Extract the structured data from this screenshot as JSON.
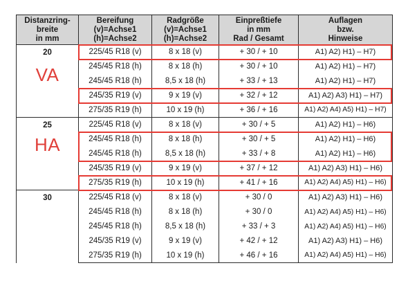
{
  "table": {
    "header": {
      "ring": [
        "Distanzring-",
        "breite",
        "in mm"
      ],
      "tires": [
        "Bereifung",
        "(v)=Achse1",
        "(h)=Achse2"
      ],
      "wheel": [
        "Radgröße",
        "(v)=Achse1",
        "(h)=Achse2"
      ],
      "offset": [
        "Einpreßtiefe",
        "in mm",
        "Rad / Gesamt"
      ],
      "notes": [
        "Auflagen",
        "bzw.",
        "Hinweise"
      ]
    },
    "groups": [
      {
        "ring": "20",
        "axle_label": "VA",
        "rows": [
          {
            "tire": "225/45 R18 (v)",
            "wheel": "8 x 18 (v)",
            "offset": "+ 30 / + 10",
            "notes": "A1) A2) H1) – H7)",
            "highlighted": true
          },
          {
            "tire": "245/45 R18 (h)",
            "wheel": "8 x 18 (h)",
            "offset": "+ 30 / + 10",
            "notes": "A1) A2) H1) – H7)",
            "highlighted": false
          },
          {
            "tire": "245/45 R18 (h)",
            "wheel": "8,5 x 18 (h)",
            "offset": "+ 33 / + 13",
            "notes": "A1) A2) H1) – H7)",
            "highlighted": false
          },
          {
            "tire": "245/35 R19 (v)",
            "wheel": "9 x 19 (v)",
            "offset": "+ 32 / + 12",
            "notes": "A1) A2) A3) H1) – H7)",
            "highlighted": true
          },
          {
            "tire": "275/35 R19 (h)",
            "wheel": "10 x 19 (h)",
            "offset": "+ 36 / + 16",
            "notes": "A1) A2) A4) A5) H1) – H7)",
            "highlighted": false
          }
        ]
      },
      {
        "ring": "25",
        "axle_label": "HA",
        "rows": [
          {
            "tire": "225/45 R18 (v)",
            "wheel": "8 x 18 (v)",
            "offset": "+ 30 / + 5",
            "notes": "A1) A2) H1) – H6)",
            "highlighted": false
          },
          {
            "tire": "245/45 R18 (h)",
            "wheel": "8 x 18 (h)",
            "offset": "+ 30 / + 5",
            "notes": "A1) A2) H1) – H6)",
            "highlighted": true
          },
          {
            "tire": "245/45 R18 (h)",
            "wheel": "8,5 x 18 (h)",
            "offset": "+ 33 / + 8",
            "notes": "A1) A2) H1) – H6)",
            "highlighted": true
          },
          {
            "tire": "245/35 R19 (v)",
            "wheel": "9 x 19 (v)",
            "offset": "+ 37 / + 12",
            "notes": "A1) A2) A3) H1) – H6)",
            "highlighted": false
          },
          {
            "tire": "275/35 R19 (h)",
            "wheel": "10 x 19 (h)",
            "offset": "+ 41 / + 16",
            "notes": "A1) A2) A4) A5) H1) – H6)",
            "highlighted": true
          }
        ]
      },
      {
        "ring": "30",
        "axle_label": "",
        "rows": [
          {
            "tire": "225/45 R18 (v)",
            "wheel": "8 x 18 (v)",
            "offset": "+ 30 / 0",
            "notes": "A1) A2) A3) H1) – H6)",
            "highlighted": false
          },
          {
            "tire": "245/45 R18 (h)",
            "wheel": "8 x 18 (h)",
            "offset": "+ 30 / 0",
            "notes": "A1) A2) A4) A5) H1) – H6)",
            "highlighted": false
          },
          {
            "tire": "245/45 R18 (h)",
            "wheel": "8,5 x 18 (h)",
            "offset": "+ 33 / + 3",
            "notes": "A1) A2) A4) A5) H1) – H6)",
            "highlighted": false
          },
          {
            "tire": "245/35 R19 (v)",
            "wheel": "9 x 19 (v)",
            "offset": "+ 42 / + 12",
            "notes": "A1) A2) A3) H1) – H6)",
            "highlighted": false
          },
          {
            "tire": "275/35 R19 (h)",
            "wheel": "10 x 19 (h)",
            "offset": "+ 46 / + 16",
            "notes": "A1) A2) A4) A5) H1) – H6)",
            "highlighted": false
          }
        ]
      }
    ]
  },
  "colors": {
    "highlight": "#e53a33",
    "axle_label": "#e0403a",
    "header_background": "#d6d6d6",
    "rule": "#2b2b2b"
  }
}
